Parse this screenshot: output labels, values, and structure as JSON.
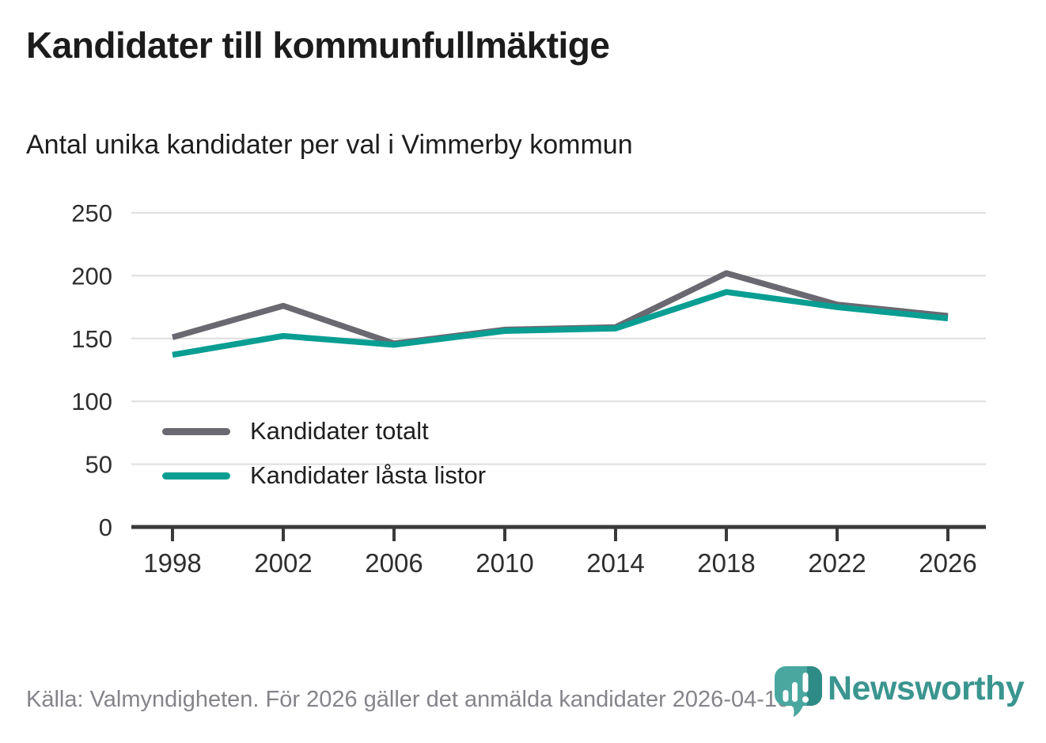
{
  "header": {
    "title": "Kandidater till kommunfullmäktige",
    "subtitle": "Antal unika kandidater per val i Vimmerby kommun"
  },
  "chart_data": {
    "type": "line",
    "title": "Kandidater till kommunfullmäktige",
    "subtitle": "Antal unika kandidater per val i Vimmerby kommun",
    "x": [
      1998,
      2002,
      2006,
      2010,
      2014,
      2018,
      2022,
      2026
    ],
    "series": [
      {
        "name": "Kandidater totalt",
        "color": "#6a6870",
        "values": [
          151,
          176,
          146,
          157,
          159,
          202,
          177,
          168
        ]
      },
      {
        "name": "Kandidater låsta listor",
        "color": "#0a9e93",
        "values": [
          137,
          152,
          145,
          156,
          158,
          187,
          175,
          166
        ]
      }
    ],
    "xlabel": "",
    "ylabel": "",
    "ylim": [
      0,
      250
    ],
    "yticks": [
      0,
      50,
      100,
      150,
      200,
      250
    ],
    "grid": true,
    "legend_position": "inside-lower-left"
  },
  "footer": {
    "source": "Källa: Valmyndigheten. För 2026 gäller det anmälda kandidater 2026-04-10.",
    "brand": "Newsworthy"
  },
  "colors": {
    "series_gray": "#6a6870",
    "series_teal": "#0a9e93",
    "gridline": "#dedede",
    "axis": "#3a3a3a",
    "axis_label": "#2e2e2e",
    "footer_text": "#84848a",
    "logo_teal": "#4aa7a0",
    "logo_teal_dark": "#2f8b85",
    "wordmark_teal": "#3a958f"
  }
}
